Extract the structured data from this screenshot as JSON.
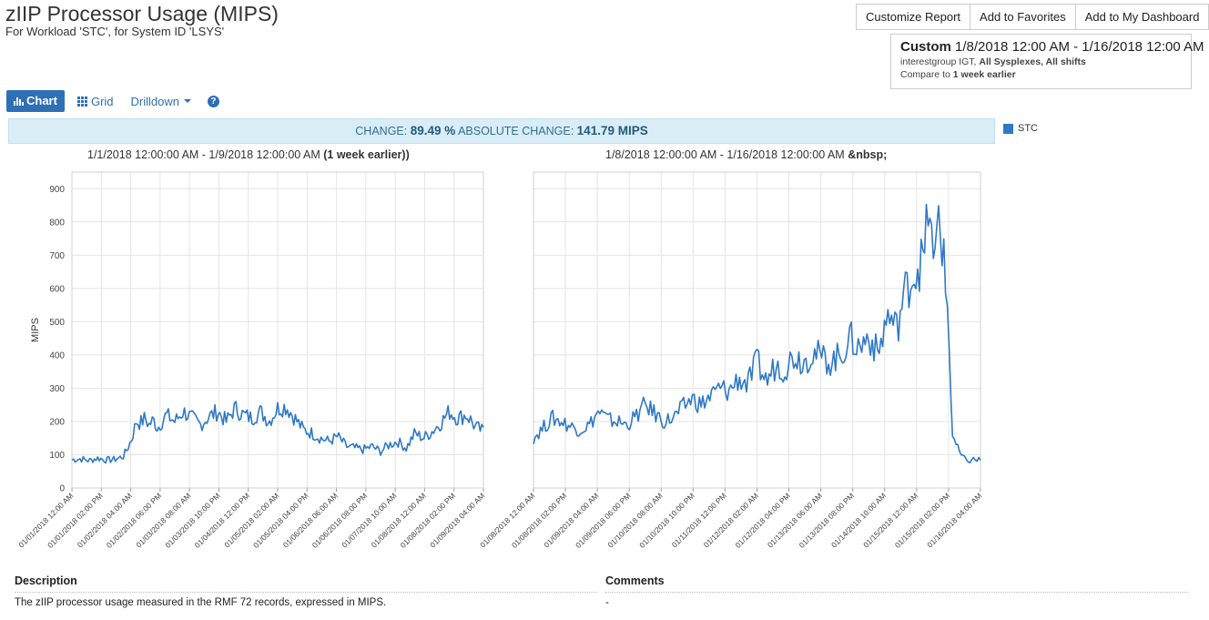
{
  "header": {
    "title": "zIIP Processor Usage (MIPS)",
    "subtitle": "For Workload 'STC', for System ID 'LSYS'"
  },
  "toolbar": {
    "customize_label": "Customize Report",
    "favorites_label": "Add to Favorites",
    "dashboard_label": "Add to My Dashboard"
  },
  "range": {
    "mode": "Custom",
    "dates": "1/8/2018 12:00 AM - 1/16/2018 12:00 AM",
    "filter_prefix": "interestgroup IGT, ",
    "filter_bold": "All Sysplexes, All shifts",
    "compare_prefix": "Compare to ",
    "compare_bold": "1 week earlier"
  },
  "view_tabs": {
    "chart_label": "Chart",
    "grid_label": "Grid",
    "drilldown_label": "Drilldown",
    "help_glyph": "?"
  },
  "change": {
    "change_label": "CHANGE:",
    "change_value": "89.49 %",
    "absolute_label": "ABSOLUTE CHANGE:",
    "absolute_value": "141.79 MIPS"
  },
  "legend": {
    "series_name": "STC",
    "color": "#2e78c6"
  },
  "panels": {
    "left_title": "1/1/2018 12:00:00 AM - 1/9/2018 12:00:00 AM ",
    "left_title_bold": "(1 week earlier))",
    "right_title": "1/8/2018 12:00:00 AM - 1/16/2018 12:00:00 AM ",
    "right_title_bold": "&nbsp;"
  },
  "description": {
    "heading": "Description",
    "text": "The zIIP processor usage measured in the RMF 72 records, expressed in MIPS.",
    "comments_heading": "Comments",
    "comments_text": "-"
  },
  "chart_data": [
    {
      "type": "line",
      "title": "1/1/2018 12:00:00 AM - 1/9/2018 12:00:00 AM (1 week earlier))",
      "ylabel": "MIPS",
      "ylim": [
        0,
        950
      ],
      "yticks": [
        0,
        100,
        200,
        300,
        400,
        500,
        600,
        700,
        800,
        900
      ],
      "grid": true,
      "color": "#2e78c6",
      "x_tick_labels": [
        "01/01/2018 12:00 AM",
        "01/01/2018 02:00 PM",
        "01/02/2018 04:00 AM",
        "01/02/2018 06:00 PM",
        "01/03/2018 08:00 AM",
        "01/03/2018 10:00 PM",
        "01/04/2018 12:00 PM",
        "01/05/2018 02:00 AM",
        "01/05/2018 04:00 PM",
        "01/06/2018 06:00 AM",
        "01/06/2018 08:00 PM",
        "01/07/2018 10:00 AM",
        "01/08/2018 12:00 AM",
        "01/08/2018 02:00 PM",
        "01/09/2018 04:00 AM"
      ],
      "series": [
        {
          "name": "STC",
          "x_hours": [
            0,
            4,
            8,
            12,
            16,
            20,
            24,
            26,
            28,
            30,
            32,
            34,
            36,
            38,
            40,
            44,
            48,
            52,
            56,
            60,
            64,
            68,
            72,
            76,
            80,
            84,
            88,
            92,
            96,
            100,
            104,
            108,
            112,
            116,
            120,
            124,
            128,
            132,
            136,
            140,
            144,
            148,
            152,
            156,
            160,
            164,
            168,
            172,
            176,
            180,
            184,
            186,
            188,
            192
          ],
          "values": [
            85,
            88,
            82,
            90,
            84,
            86,
            95,
            120,
            150,
            200,
            195,
            210,
            190,
            205,
            180,
            220,
            200,
            230,
            210,
            190,
            215,
            230,
            200,
            240,
            220,
            210,
            230,
            200,
            240,
            245,
            210,
            175,
            165,
            150,
            140,
            155,
            125,
            120,
            115,
            125,
            110,
            130,
            140,
            120,
            165,
            150,
            170,
            195,
            230,
            210,
            220,
            205,
            185,
            170
          ]
        }
      ]
    },
    {
      "type": "line",
      "title": "1/8/2018 12:00:00 AM - 1/16/2018 12:00:00 AM &nbsp;",
      "ylim": [
        0,
        950
      ],
      "yticks": [
        0,
        100,
        200,
        300,
        400,
        500,
        600,
        700,
        800,
        900
      ],
      "grid": true,
      "color": "#2e78c6",
      "x_tick_labels": [
        "01/08/2018 12:00 AM",
        "01/08/2018 02:00 PM",
        "01/09/2018 04:00 AM",
        "01/09/2018 06:00 PM",
        "01/10/2018 08:00 AM",
        "01/10/2018 10:00 PM",
        "01/11/2018 12:00 PM",
        "01/12/2018 02:00 AM",
        "01/12/2018 04:00 PM",
        "01/13/2018 06:00 AM",
        "01/13/2018 08:00 PM",
        "01/14/2018 10:00 AM",
        "01/15/2018 12:00 AM",
        "01/15/2018 02:00 PM",
        "01/16/2018 04:00 AM"
      ],
      "series": [
        {
          "name": "STC",
          "x_hours": [
            0,
            4,
            8,
            12,
            16,
            20,
            24,
            28,
            32,
            36,
            40,
            44,
            48,
            52,
            56,
            60,
            64,
            68,
            72,
            76,
            80,
            84,
            88,
            92,
            96,
            100,
            104,
            108,
            112,
            116,
            120,
            124,
            128,
            132,
            136,
            140,
            144,
            148,
            152,
            156,
            160,
            164,
            168,
            170,
            172,
            174,
            176,
            178,
            180,
            182,
            184,
            186,
            188
          ],
          "values": [
            150,
            180,
            210,
            200,
            185,
            175,
            190,
            230,
            205,
            200,
            190,
            215,
            250,
            225,
            200,
            210,
            240,
            270,
            250,
            275,
            300,
            290,
            330,
            310,
            380,
            320,
            370,
            360,
            400,
            380,
            410,
            390,
            380,
            400,
            450,
            420,
            460,
            400,
            520,
            480,
            600,
            650,
            700,
            880,
            620,
            850,
            700,
            520,
            160,
            120,
            95,
            80,
            85
          ]
        }
      ]
    }
  ]
}
